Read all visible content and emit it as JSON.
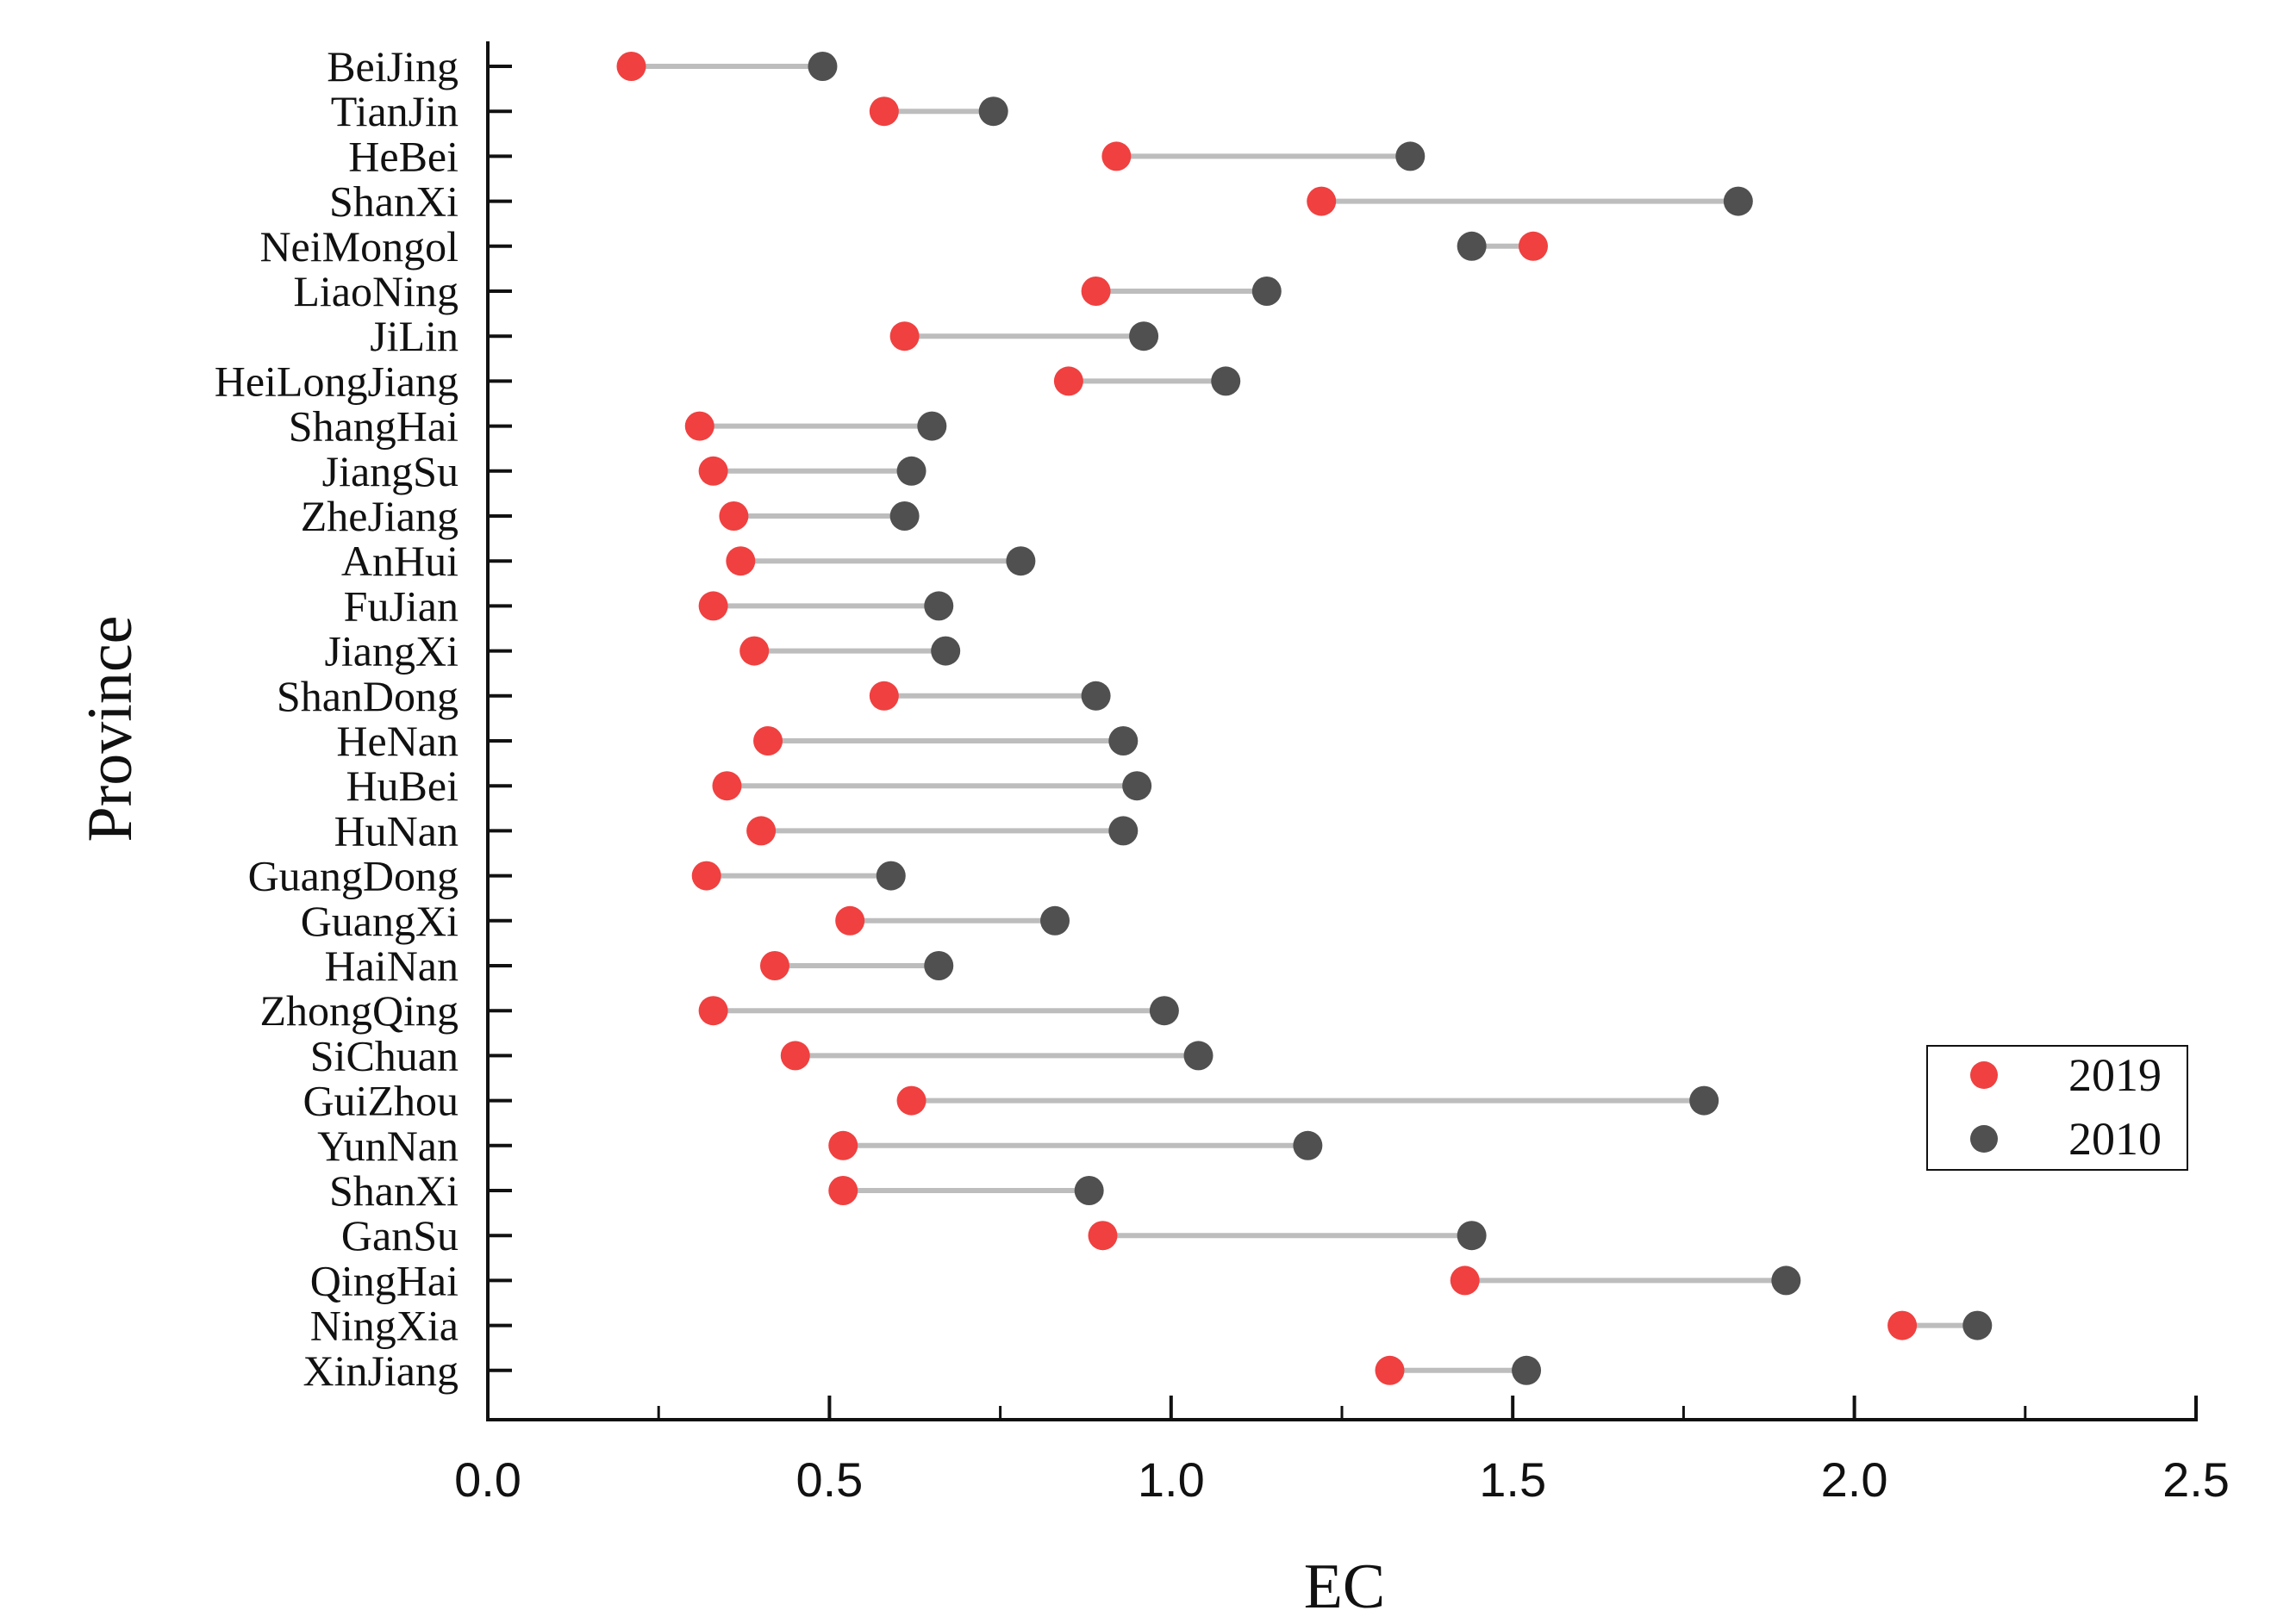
{
  "chart_data": {
    "type": "dumbbell",
    "title": "",
    "xlabel": "EC",
    "ylabel": "Province",
    "xlim": [
      0,
      2.5
    ],
    "xticks": [
      "0.0",
      "0.5",
      "1.0",
      "1.5",
      "2.0",
      "2.5"
    ],
    "grid": false,
    "legend_position": "right",
    "colors": {
      "2019": "#f04040",
      "2010": "#505050",
      "connector": "#bdbdbd"
    },
    "categories": [
      "BeiJing",
      "TianJin",
      "HeBei",
      "ShanXi",
      "NeiMongol",
      "LiaoNing",
      "JiLin",
      "HeiLongJiang",
      "ShangHai",
      "JiangSu",
      "ZheJiang",
      "AnHui",
      "FuJian",
      "JiangXi",
      "ShanDong",
      "HeNan",
      "HuBei",
      "HuNan",
      "GuangDong",
      "GuangXi",
      "HaiNan",
      "ZhongQing",
      "SiChuan",
      "GuiZhou",
      "YunNan",
      "ShanXi",
      "GanSu",
      "QingHai",
      "NingXia",
      "XinJiang"
    ],
    "series": [
      {
        "name": "2019",
        "values": [
          0.21,
          0.58,
          0.92,
          1.22,
          1.53,
          0.89,
          0.61,
          0.85,
          0.31,
          0.33,
          0.36,
          0.37,
          0.33,
          0.39,
          0.58,
          0.41,
          0.35,
          0.4,
          0.32,
          0.53,
          0.42,
          0.33,
          0.45,
          0.62,
          0.52,
          0.52,
          0.9,
          1.43,
          2.07,
          1.32
        ]
      },
      {
        "name": "2010",
        "values": [
          0.49,
          0.74,
          1.35,
          1.83,
          1.44,
          1.14,
          0.96,
          1.08,
          0.65,
          0.62,
          0.61,
          0.78,
          0.66,
          0.67,
          0.89,
          0.93,
          0.95,
          0.93,
          0.59,
          0.83,
          0.66,
          0.99,
          1.04,
          1.78,
          1.2,
          0.88,
          1.44,
          1.9,
          2.18,
          1.52
        ]
      }
    ]
  }
}
